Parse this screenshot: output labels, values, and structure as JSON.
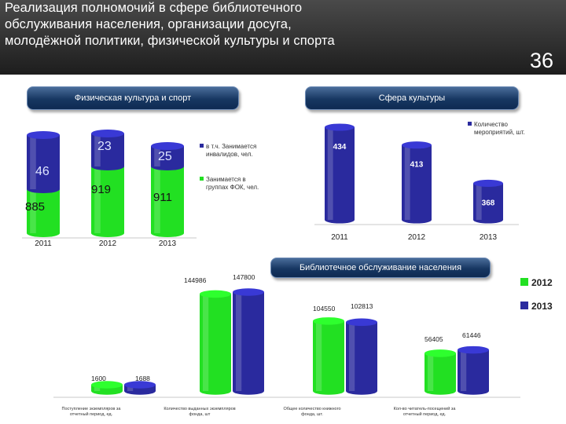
{
  "header": {
    "title": "Реализация полномочий в сфере библиотечного\nобслуживания населения, организации досуга,\nмолодёжной политики, физической культуры и спорта",
    "page_number": "36"
  },
  "colors": {
    "green": "#22e022",
    "blue": "#2a2a9e",
    "header_bg": "#2b2b2b",
    "pill": "#173762"
  },
  "chart_data": [
    {
      "type": "bar",
      "stacked": true,
      "title": "Физическая культура и спорт",
      "categories": [
        "2011",
        "2012",
        "2013"
      ],
      "series": [
        {
          "name": "Занимается в группах ФОК, чел.",
          "color": "#22e022",
          "values": [
            885,
            919,
            911
          ]
        },
        {
          "name": "в т.ч. Занимается инвалидов, чел.",
          "color": "#2a2a9e",
          "values": [
            46,
            23,
            25
          ]
        }
      ],
      "legend_position": "right"
    },
    {
      "type": "bar",
      "title": "Сфера культуры",
      "categories": [
        "2011",
        "2012",
        "2013"
      ],
      "series": [
        {
          "name": "Количество мероприятий, шт.",
          "color": "#2a2a9e",
          "values": [
            434,
            413,
            368
          ]
        }
      ],
      "legend_position": "top-right"
    },
    {
      "type": "bar",
      "title": "Библиотечное обслуживание населения",
      "categories": [
        "Поступление экземпляров за отчетный период, ед.",
        "Количество выданных экземпляров фонда, шт",
        "Общее количество книжного фонда, шт.",
        "Кол-во читатель-посещений за отчетный период, ед."
      ],
      "series": [
        {
          "name": "2012",
          "color": "#22e022",
          "values": [
            1600,
            144986,
            104550,
            56405
          ]
        },
        {
          "name": "2013",
          "color": "#2a2a9e",
          "values": [
            1688,
            147800,
            102813,
            61446
          ]
        }
      ],
      "legend_position": "right"
    }
  ]
}
